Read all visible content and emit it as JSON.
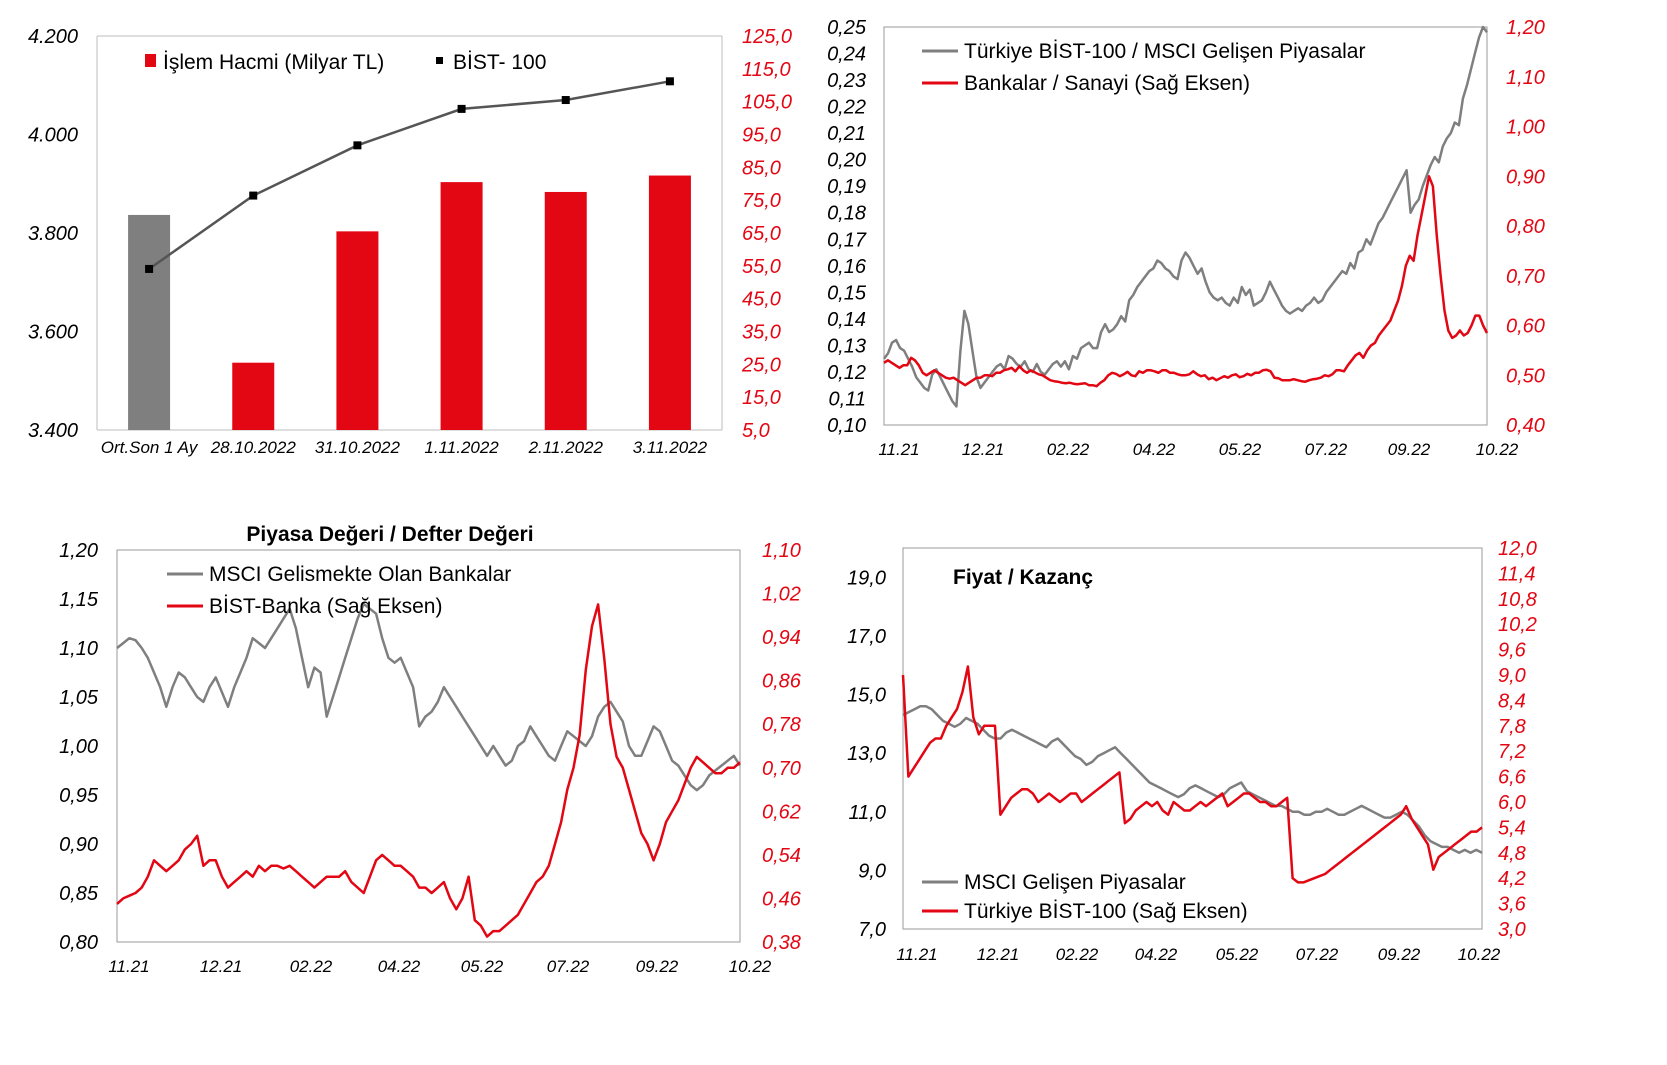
{
  "colors": {
    "red": "#e30613",
    "gray": "#7f7f7f",
    "dark": "#555555",
    "axis_black": "#000000",
    "frame": "#9a9a9a"
  },
  "chart_data": [
    {
      "id": "c1",
      "type": "bar",
      "title": "",
      "categories": [
        "Ort.Son 1 Ay",
        "28.10.2022",
        "31.10.2022",
        "1.11.2022",
        "2.11.2022",
        "3.11.2022"
      ],
      "series": [
        {
          "name": "İşlem Hacmi (Milyar TL)",
          "kind": "bar",
          "axis": "right",
          "values": [
            70.5,
            25.5,
            65.5,
            80.5,
            77.5,
            82.5
          ],
          "colors": [
            "gray",
            "red",
            "red",
            "red",
            "red",
            "red"
          ]
        },
        {
          "name": "BİST- 100",
          "kind": "line",
          "axis": "left",
          "values": [
            3727,
            3876,
            3978,
            4052,
            4070,
            4108
          ]
        }
      ],
      "left_axis": {
        "ylim": [
          3400,
          4200
        ],
        "ticks": [
          "3.400",
          "3.600",
          "3.800",
          "4.000",
          "4.200"
        ]
      },
      "right_axis": {
        "ylim": [
          5,
          125
        ],
        "ticks": [
          "5,0",
          "15,0",
          "25,0",
          "35,0",
          "45,0",
          "55,0",
          "65,0",
          "75,0",
          "85,0",
          "95,0",
          "105,0",
          "115,0",
          "125,0"
        ]
      },
      "legend": "top"
    },
    {
      "id": "c2",
      "type": "line",
      "title": "",
      "x_ticks": [
        "11.21",
        "12.21",
        "02.22",
        "04.22",
        "05.22",
        "07.22",
        "09.22",
        "10.22"
      ],
      "series": [
        {
          "name": "Türkiye BİST-100 / MSCI Gelişen Piyasalar",
          "axis": "left",
          "values": [
            0.125,
            0.127,
            0.131,
            0.132,
            0.129,
            0.128,
            0.125,
            0.122,
            0.118,
            0.116,
            0.114,
            0.113,
            0.119,
            0.121,
            0.118,
            0.115,
            0.112,
            0.109,
            0.107,
            0.128,
            0.143,
            0.138,
            0.128,
            0.118,
            0.114,
            0.116,
            0.118,
            0.12,
            0.122,
            0.123,
            0.121,
            0.126,
            0.125,
            0.123,
            0.122,
            0.124,
            0.121,
            0.12,
            0.123,
            0.12,
            0.119,
            0.121,
            0.123,
            0.124,
            0.122,
            0.124,
            0.121,
            0.126,
            0.125,
            0.129,
            0.13,
            0.131,
            0.129,
            0.129,
            0.135,
            0.138,
            0.135,
            0.136,
            0.138,
            0.141,
            0.139,
            0.147,
            0.149,
            0.152,
            0.154,
            0.156,
            0.158,
            0.159,
            0.162,
            0.161,
            0.159,
            0.158,
            0.156,
            0.155,
            0.162,
            0.165,
            0.163,
            0.16,
            0.157,
            0.159,
            0.154,
            0.15,
            0.148,
            0.147,
            0.148,
            0.146,
            0.145,
            0.148,
            0.146,
            0.152,
            0.149,
            0.151,
            0.145,
            0.146,
            0.147,
            0.15,
            0.154,
            0.151,
            0.148,
            0.145,
            0.143,
            0.142,
            0.143,
            0.144,
            0.143,
            0.145,
            0.146,
            0.148,
            0.146,
            0.147,
            0.15,
            0.152,
            0.154,
            0.156,
            0.158,
            0.157,
            0.161,
            0.159,
            0.165,
            0.166,
            0.17,
            0.168,
            0.172,
            0.176,
            0.178,
            0.181,
            0.184,
            0.187,
            0.19,
            0.193,
            0.196,
            0.18,
            0.183,
            0.185,
            0.19,
            0.194,
            0.198,
            0.201,
            0.199,
            0.205,
            0.208,
            0.21,
            0.214,
            0.213,
            0.223,
            0.228,
            0.234,
            0.24,
            0.246,
            0.25,
            0.248
          ]
        },
        {
          "name": "Bankalar / Sanayi (Sağ Eksen)",
          "axis": "right",
          "values": [
            0.525,
            0.53,
            0.525,
            0.52,
            0.515,
            0.52,
            0.52,
            0.535,
            0.53,
            0.52,
            0.505,
            0.5,
            0.505,
            0.51,
            0.505,
            0.5,
            0.495,
            0.493,
            0.495,
            0.49,
            0.485,
            0.48,
            0.485,
            0.49,
            0.495,
            0.495,
            0.5,
            0.5,
            0.498,
            0.505,
            0.505,
            0.51,
            0.512,
            0.515,
            0.508,
            0.518,
            0.51,
            0.505,
            0.51,
            0.506,
            0.502,
            0.5,
            0.495,
            0.49,
            0.488,
            0.487,
            0.485,
            0.484,
            0.485,
            0.483,
            0.482,
            0.483,
            0.484,
            0.48,
            0.48,
            0.478,
            0.485,
            0.49,
            0.5,
            0.505,
            0.503,
            0.498,
            0.502,
            0.507,
            0.5,
            0.498,
            0.508,
            0.505,
            0.51,
            0.51,
            0.508,
            0.505,
            0.51,
            0.51,
            0.505,
            0.505,
            0.502,
            0.5,
            0.5,
            0.502,
            0.508,
            0.502,
            0.498,
            0.5,
            0.492,
            0.495,
            0.49,
            0.494,
            0.498,
            0.495,
            0.5,
            0.502,
            0.496,
            0.498,
            0.503,
            0.5,
            0.505,
            0.505,
            0.51,
            0.511,
            0.508,
            0.495,
            0.494,
            0.49,
            0.49,
            0.49,
            0.492,
            0.49,
            0.488,
            0.487,
            0.49,
            0.492,
            0.493,
            0.495,
            0.5,
            0.498,
            0.502,
            0.51,
            0.51,
            0.508,
            0.52,
            0.53,
            0.54,
            0.545,
            0.535,
            0.55,
            0.56,
            0.565,
            0.58,
            0.59,
            0.6,
            0.61,
            0.63,
            0.65,
            0.68,
            0.72,
            0.74,
            0.73,
            0.78,
            0.82,
            0.86,
            0.9,
            0.88,
            0.78,
            0.7,
            0.63,
            0.59,
            0.575,
            0.58,
            0.59,
            0.58,
            0.585,
            0.6,
            0.62,
            0.62,
            0.6,
            0.585
          ]
        }
      ],
      "left_axis": {
        "ylim": [
          0.1,
          0.25
        ],
        "ticks": [
          "0,10",
          "0,11",
          "0,12",
          "0,13",
          "0,14",
          "0,15",
          "0,16",
          "0,17",
          "0,18",
          "0,19",
          "0,20",
          "0,21",
          "0,22",
          "0,23",
          "0,24",
          "0,25"
        ]
      },
      "right_axis": {
        "ylim": [
          0.4,
          1.2
        ],
        "ticks": [
          "0,40",
          "0,50",
          "0,60",
          "0,70",
          "0,80",
          "0,90",
          "1,00",
          "1,10",
          "1,20"
        ]
      },
      "legend": "top-left"
    },
    {
      "id": "c3",
      "type": "line",
      "title": "Piyasa Değeri / Defter Değeri",
      "x_ticks": [
        "11.21",
        "12.21",
        "02.22",
        "04.22",
        "05.22",
        "07.22",
        "09.22",
        "10.22"
      ],
      "series": [
        {
          "name": "MSCI Gelismekte Olan Bankalar",
          "axis": "left",
          "values": [
            1.1,
            1.105,
            1.11,
            1.108,
            1.1,
            1.09,
            1.075,
            1.06,
            1.04,
            1.06,
            1.075,
            1.07,
            1.06,
            1.05,
            1.045,
            1.06,
            1.07,
            1.055,
            1.04,
            1.06,
            1.075,
            1.09,
            1.11,
            1.105,
            1.1,
            1.11,
            1.12,
            1.13,
            1.14,
            1.12,
            1.09,
            1.06,
            1.08,
            1.075,
            1.03,
            1.05,
            1.07,
            1.09,
            1.11,
            1.13,
            1.145,
            1.14,
            1.135,
            1.11,
            1.09,
            1.085,
            1.09,
            1.075,
            1.06,
            1.02,
            1.03,
            1.035,
            1.045,
            1.06,
            1.05,
            1.04,
            1.03,
            1.02,
            1.01,
            1.0,
            0.99,
            1.0,
            0.99,
            0.98,
            0.985,
            1.0,
            1.005,
            1.02,
            1.01,
            1.0,
            0.99,
            0.985,
            1.0,
            1.015,
            1.01,
            1.005,
            1.0,
            1.01,
            1.03,
            1.04,
            1.045,
            1.035,
            1.025,
            1.0,
            0.99,
            0.99,
            1.005,
            1.02,
            1.015,
            1.0,
            0.985,
            0.98,
            0.97,
            0.96,
            0.955,
            0.96,
            0.97,
            0.975,
            0.98,
            0.985,
            0.99,
            0.98
          ]
        },
        {
          "name": "BİST-Banka (Sağ Eksen)",
          "axis": "right",
          "values": [
            0.45,
            0.46,
            0.465,
            0.47,
            0.48,
            0.5,
            0.53,
            0.52,
            0.51,
            0.52,
            0.53,
            0.55,
            0.56,
            0.575,
            0.52,
            0.53,
            0.53,
            0.5,
            0.48,
            0.49,
            0.5,
            0.51,
            0.5,
            0.52,
            0.51,
            0.52,
            0.52,
            0.515,
            0.52,
            0.51,
            0.5,
            0.49,
            0.48,
            0.49,
            0.5,
            0.5,
            0.5,
            0.51,
            0.49,
            0.48,
            0.47,
            0.5,
            0.53,
            0.54,
            0.53,
            0.52,
            0.52,
            0.51,
            0.5,
            0.48,
            0.48,
            0.47,
            0.48,
            0.49,
            0.46,
            0.44,
            0.46,
            0.5,
            0.42,
            0.41,
            0.39,
            0.4,
            0.4,
            0.41,
            0.42,
            0.43,
            0.45,
            0.47,
            0.49,
            0.5,
            0.52,
            0.56,
            0.6,
            0.66,
            0.7,
            0.76,
            0.88,
            0.96,
            1.0,
            0.9,
            0.78,
            0.72,
            0.7,
            0.66,
            0.62,
            0.58,
            0.56,
            0.53,
            0.56,
            0.6,
            0.62,
            0.64,
            0.67,
            0.7,
            0.72,
            0.71,
            0.7,
            0.69,
            0.69,
            0.7,
            0.7,
            0.71
          ]
        }
      ],
      "left_axis": {
        "ylim": [
          0.8,
          1.2
        ],
        "ticks": [
          "0,80",
          "0,85",
          "0,90",
          "0,95",
          "1,00",
          "1,05",
          "1,10",
          "1,15",
          "1,20"
        ]
      },
      "right_axis": {
        "ylim": [
          0.38,
          1.1
        ],
        "ticks": [
          "0,38",
          "0,46",
          "0,54",
          "0,62",
          "0,70",
          "0,78",
          "0,86",
          "0,94",
          "1,02",
          "1,10"
        ]
      },
      "legend": "top-left"
    },
    {
      "id": "c4",
      "type": "line",
      "title": "Fiyat / Kazanç",
      "x_ticks": [
        "11.21",
        "12.21",
        "02.22",
        "04.22",
        "05.22",
        "07.22",
        "09.22",
        "10.22"
      ],
      "series": [
        {
          "name": "MSCI Gelişen Piyasalar",
          "axis": "left",
          "values": [
            14.3,
            14.4,
            14.5,
            14.6,
            14.6,
            14.5,
            14.3,
            14.1,
            14.0,
            13.9,
            14.0,
            14.2,
            14.1,
            14.0,
            13.8,
            13.6,
            13.5,
            13.5,
            13.7,
            13.8,
            13.7,
            13.6,
            13.5,
            13.4,
            13.3,
            13.2,
            13.4,
            13.5,
            13.3,
            13.1,
            12.9,
            12.8,
            12.6,
            12.7,
            12.9,
            13.0,
            13.1,
            13.2,
            13.0,
            12.8,
            12.6,
            12.4,
            12.2,
            12.0,
            11.9,
            11.8,
            11.7,
            11.6,
            11.5,
            11.6,
            11.8,
            11.9,
            11.8,
            11.7,
            11.6,
            11.5,
            11.6,
            11.8,
            11.9,
            12.0,
            11.7,
            11.6,
            11.5,
            11.4,
            11.3,
            11.2,
            11.2,
            11.1,
            11.0,
            11.0,
            10.9,
            10.9,
            11.0,
            11.0,
            11.1,
            11.0,
            10.9,
            10.9,
            11.0,
            11.1,
            11.2,
            11.1,
            11.0,
            10.9,
            10.8,
            10.8,
            10.9,
            11.0,
            10.9,
            10.7,
            10.5,
            10.2,
            10.0,
            9.9,
            9.8,
            9.8,
            9.7,
            9.6,
            9.7,
            9.6,
            9.7,
            9.6
          ]
        },
        {
          "name": "Türkiye BİST-100 (Sağ Eksen)",
          "axis": "right",
          "values": [
            9.0,
            6.6,
            6.8,
            7.0,
            7.2,
            7.4,
            7.5,
            7.5,
            7.8,
            8.0,
            8.2,
            8.6,
            9.2,
            8.0,
            7.6,
            7.8,
            7.8,
            7.8,
            5.7,
            5.9,
            6.1,
            6.2,
            6.3,
            6.3,
            6.2,
            6.0,
            6.1,
            6.2,
            6.1,
            6.0,
            6.1,
            6.2,
            6.2,
            6.0,
            6.1,
            6.2,
            6.3,
            6.4,
            6.5,
            6.6,
            6.7,
            5.5,
            5.6,
            5.8,
            5.9,
            6.0,
            5.9,
            6.0,
            5.8,
            5.7,
            6.0,
            5.9,
            5.8,
            5.8,
            5.9,
            6.0,
            5.9,
            6.0,
            6.1,
            6.2,
            5.9,
            6.0,
            6.1,
            6.2,
            6.2,
            6.1,
            6.0,
            6.0,
            5.9,
            5.9,
            6.0,
            6.1,
            4.2,
            4.1,
            4.1,
            4.15,
            4.2,
            4.25,
            4.3,
            4.4,
            4.5,
            4.6,
            4.7,
            4.8,
            4.9,
            5.0,
            5.1,
            5.2,
            5.3,
            5.4,
            5.5,
            5.6,
            5.7,
            5.9,
            5.6,
            5.4,
            5.2,
            5.0,
            4.4,
            4.7,
            4.8,
            4.9,
            5.0,
            5.1,
            5.2,
            5.3,
            5.3,
            5.4
          ]
        }
      ],
      "left_axis": {
        "ylim": [
          7.0,
          20.0
        ],
        "ticks": [
          "7,0",
          "9,0",
          "11,0",
          "13,0",
          "15,0",
          "17,0",
          "19,0"
        ]
      },
      "right_axis": {
        "ylim": [
          3.0,
          12.0
        ],
        "ticks": [
          "3,0",
          "3,6",
          "4,2",
          "4,8",
          "5,4",
          "6,0",
          "6,6",
          "7,2",
          "7,8",
          "8,4",
          "9,0",
          "9,6",
          "10,2",
          "10,8",
          "11,4",
          "12,0"
        ]
      },
      "legend": "bottom-left"
    }
  ]
}
